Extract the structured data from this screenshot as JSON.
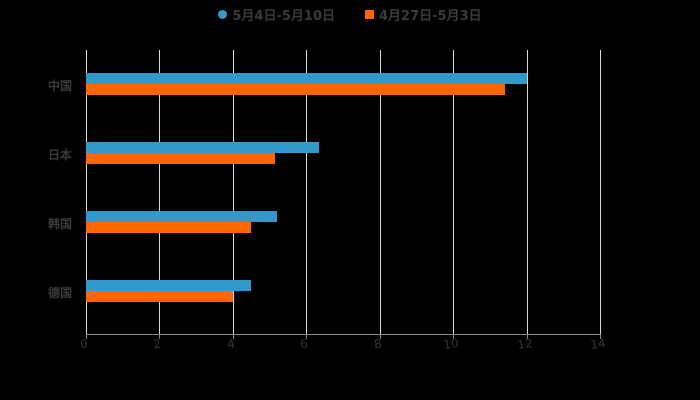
{
  "chart_data": {
    "type": "bar",
    "orientation": "horizontal",
    "title": "",
    "xlabel": "",
    "ylabel": "",
    "categories": [
      "中国",
      "日本",
      "韩国",
      "德国"
    ],
    "series": [
      {
        "name": "5月4日-5月10日",
        "color": "#3399cc",
        "marker": "circle",
        "values": [
          12.0,
          6.35,
          5.2,
          4.5
        ]
      },
      {
        "name": "4月27日-5月3日",
        "color": "#ff6600",
        "marker": "square",
        "values": [
          11.4,
          5.15,
          4.5,
          4.0
        ]
      }
    ],
    "xlim": [
      0,
      14
    ],
    "xticks": [
      "0",
      "2",
      "4",
      "6",
      "8",
      "10",
      "12",
      "14"
    ],
    "grid": true,
    "legend_position": "top"
  }
}
